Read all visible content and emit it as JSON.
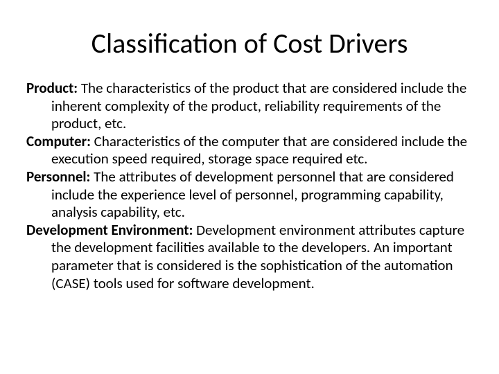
{
  "title": "Classification of Cost Drivers",
  "items": [
    {
      "label": "Product:",
      "desc": " The characteristics of the product that are considered include the  inherent complexity of the product, reliability requirements of the product, etc."
    },
    {
      "label": "Computer:",
      "desc": " Characteristics of the computer that are considered include the execution speed required, storage space required etc."
    },
    {
      "label": "Personnel:",
      "desc": " The attributes of development personnel that are considered include the experience level of personnel, programming capability, analysis capability, etc."
    },
    {
      "label": "Development Environment:",
      "desc": " Development environment attributes capture the development facilities available to the developers. An important parameter that is considered is the sophistication of the automation (CASE) tools used for software development."
    }
  ],
  "style": {
    "title_fontsize": 40,
    "body_fontsize": 21,
    "background": "#ffffff",
    "text_color": "#000000",
    "font_family": "Calibri"
  }
}
